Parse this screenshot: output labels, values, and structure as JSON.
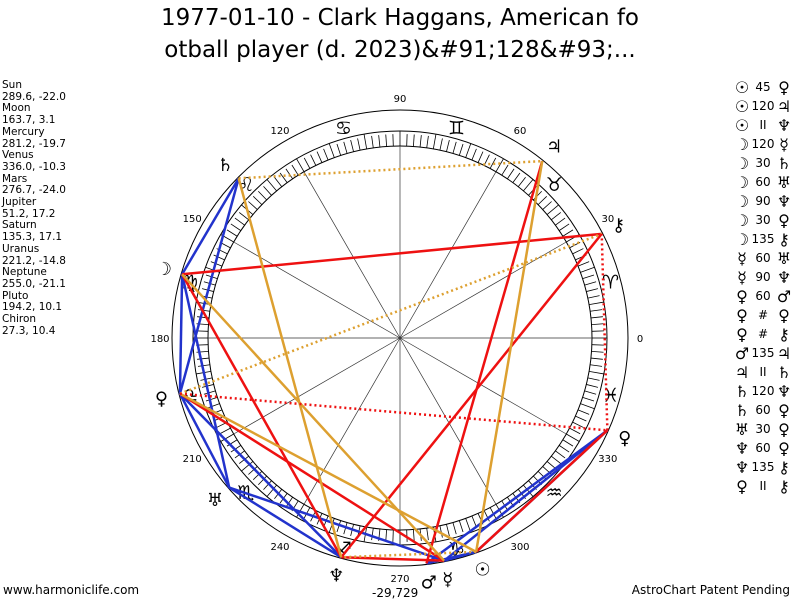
{
  "title": {
    "line1": "1977-01-10 - Clark Haggans, American fo",
    "line2": "otball player (d. 2023)&#91;128&#93;..."
  },
  "planets": [
    {
      "name": "Sun",
      "lon": 289.6,
      "lat": -22.0,
      "coords": "289.6, -22.0",
      "glyph": "☉",
      "color": "#000000"
    },
    {
      "name": "Moon",
      "lon": 163.7,
      "lat": 3.1,
      "coords": "163.7, 3.1",
      "glyph": "☽",
      "color": "#000000"
    },
    {
      "name": "Mercury",
      "lon": 281.2,
      "lat": -19.7,
      "coords": "281.2, -19.7",
      "glyph": "☿",
      "color": "#000000"
    },
    {
      "name": "Venus",
      "lon": 336.0,
      "lat": -10.3,
      "coords": "336.0, -10.3",
      "glyph": "♀",
      "color": "#000000"
    },
    {
      "name": "Mars",
      "lon": 276.7,
      "lat": -24.0,
      "coords": "276.7, -24.0",
      "glyph": "♂",
      "color": "#000000"
    },
    {
      "name": "Jupiter",
      "lon": 51.2,
      "lat": 17.2,
      "coords": "51.2, 17.2",
      "glyph": "♃",
      "color": "#000000"
    },
    {
      "name": "Saturn",
      "lon": 135.3,
      "lat": 17.1,
      "coords": "135.3, 17.1",
      "glyph": "♄",
      "color": "#000000"
    },
    {
      "name": "Uranus",
      "lon": 221.2,
      "lat": -14.8,
      "coords": "221.2, -14.8",
      "glyph": "♅",
      "color": "#000000"
    },
    {
      "name": "Neptune",
      "lon": 255.0,
      "lat": -21.1,
      "coords": "255.0, -21.1",
      "glyph": "♆",
      "color": "#000000"
    },
    {
      "name": "Pluto",
      "lon": 194.2,
      "lat": 10.1,
      "coords": "194.2, 10.1",
      "glyph": "♀",
      "color": "#000000"
    },
    {
      "name": "Chiron",
      "lon": 27.3,
      "lat": 10.4,
      "coords": "27.3, 10.4",
      "glyph": "⚷",
      "color": "#000000"
    }
  ],
  "wheel": {
    "degree_labels": [
      "0",
      "30",
      "60",
      "90",
      "120",
      "150",
      "180",
      "210",
      "240",
      "270",
      "300",
      "330"
    ],
    "sign_glyphs": [
      "♈",
      "♉",
      "♊",
      "♋",
      "♌",
      "♍",
      "♎",
      "♏",
      "♐",
      "♑",
      "♒",
      "♓"
    ]
  },
  "aspects": [
    {
      "p1": "☉",
      "sym": "45",
      "p2": "♀"
    },
    {
      "p1": "☉",
      "sym": "120",
      "p2": "♃"
    },
    {
      "p1": "☉",
      "sym": "II",
      "p2": "♆"
    },
    {
      "p1": "☽",
      "sym": "120",
      "p2": "☿"
    },
    {
      "p1": "☽",
      "sym": "30",
      "p2": "♄"
    },
    {
      "p1": "☽",
      "sym": "60",
      "p2": "♅"
    },
    {
      "p1": "☽",
      "sym": "90",
      "p2": "♆"
    },
    {
      "p1": "☽",
      "sym": "30",
      "p2": "♀"
    },
    {
      "p1": "☽",
      "sym": "135",
      "p2": "⚷"
    },
    {
      "p1": "☿",
      "sym": "60",
      "p2": "♅"
    },
    {
      "p1": "☿",
      "sym": "90",
      "p2": "♆"
    },
    {
      "p1": "♀",
      "sym": "60",
      "p2": "♂"
    },
    {
      "p1": "♀",
      "sym": "#",
      "p2": "♀"
    },
    {
      "p1": "♀",
      "sym": "#",
      "p2": "⚷"
    },
    {
      "p1": "♂",
      "sym": "135",
      "p2": "♃"
    },
    {
      "p1": "♃",
      "sym": "II",
      "p2": "♄"
    },
    {
      "p1": "♄",
      "sym": "120",
      "p2": "♆"
    },
    {
      "p1": "♄",
      "sym": "60",
      "p2": "♀"
    },
    {
      "p1": "♅",
      "sym": "30",
      "p2": "♀"
    },
    {
      "p1": "♆",
      "sym": "60",
      "p2": "♀"
    },
    {
      "p1": "♆",
      "sym": "135",
      "p2": "⚷"
    },
    {
      "p1": "♀",
      "sym": "II",
      "p2": "⚷"
    }
  ],
  "aspect_lines": [
    {
      "a": "Sun",
      "b": "Mercury",
      "color": "#2233cc",
      "style": "solid"
    },
    {
      "a": "Sun",
      "b": "Mars",
      "color": "#2233cc",
      "style": "solid"
    },
    {
      "a": "Sun",
      "b": "Venus",
      "color": "#2233cc",
      "style": "solid"
    },
    {
      "a": "Mercury",
      "b": "Venus",
      "color": "#2233cc",
      "style": "solid"
    },
    {
      "a": "Mars",
      "b": "Venus",
      "color": "#2233cc",
      "style": "solid"
    },
    {
      "a": "Moon",
      "b": "Saturn",
      "color": "#2233cc",
      "style": "solid"
    },
    {
      "a": "Moon",
      "b": "Pluto",
      "color": "#2233cc",
      "style": "solid"
    },
    {
      "a": "Moon",
      "b": "Uranus",
      "color": "#2233cc",
      "style": "solid"
    },
    {
      "a": "Saturn",
      "b": "Pluto",
      "color": "#2233cc",
      "style": "solid"
    },
    {
      "a": "Pluto",
      "b": "Uranus",
      "color": "#2233cc",
      "style": "solid"
    },
    {
      "a": "Pluto",
      "b": "Neptune",
      "color": "#2233cc",
      "style": "solid"
    },
    {
      "a": "Uranus",
      "b": "Neptune",
      "color": "#2233cc",
      "style": "solid"
    },
    {
      "a": "Mercury",
      "b": "Uranus",
      "color": "#2233cc",
      "style": "solid"
    },
    {
      "a": "Moon",
      "b": "Chiron",
      "color": "#ee1111",
      "style": "solid"
    },
    {
      "a": "Moon",
      "b": "Neptune",
      "color": "#ee1111",
      "style": "solid"
    },
    {
      "a": "Mercury",
      "b": "Neptune",
      "color": "#ee1111",
      "style": "solid"
    },
    {
      "a": "Mars",
      "b": "Jupiter",
      "color": "#ee1111",
      "style": "solid"
    },
    {
      "a": "Neptune",
      "b": "Chiron",
      "color": "#ee1111",
      "style": "solid"
    },
    {
      "a": "Sun",
      "b": "Venus",
      "color": "#ee1111",
      "style": "solid"
    },
    {
      "a": "Pluto",
      "b": "Mercury",
      "color": "#ee1111",
      "style": "solid"
    },
    {
      "a": "Sun",
      "b": "Jupiter",
      "color": "#dda030",
      "style": "solid"
    },
    {
      "a": "Moon",
      "b": "Mercury",
      "color": "#dda030",
      "style": "solid"
    },
    {
      "a": "Saturn",
      "b": "Neptune",
      "color": "#dda030",
      "style": "solid"
    },
    {
      "a": "Pluto",
      "b": "Sun",
      "color": "#dda030",
      "style": "solid"
    },
    {
      "a": "Saturn",
      "b": "Jupiter",
      "color": "#dda030",
      "style": "dotted"
    },
    {
      "a": "Pluto",
      "b": "Chiron",
      "color": "#dda030",
      "style": "dotted"
    },
    {
      "a": "Sun",
      "b": "Neptune",
      "color": "#dda030",
      "style": "dotted"
    },
    {
      "a": "Venus",
      "b": "Chiron",
      "color": "#ee1111",
      "style": "dotted"
    },
    {
      "a": "Pluto",
      "b": "Venus",
      "color": "#ee1111",
      "style": "dotted"
    }
  ],
  "footer": {
    "left": "www.harmoniclife.com",
    "right": "AstroChart Patent Pending",
    "center": "-29,729"
  }
}
